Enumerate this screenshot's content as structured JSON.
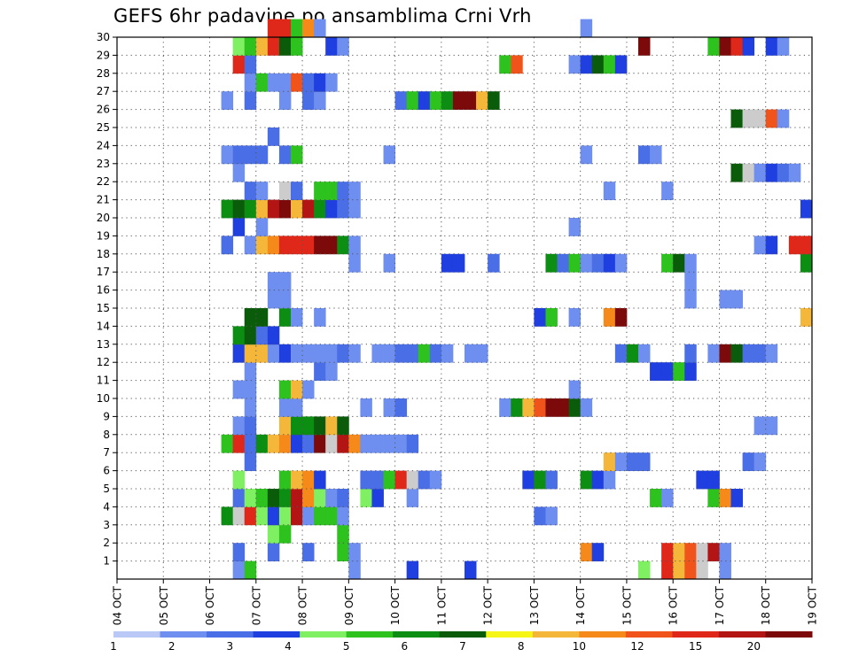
{
  "title": "GEFS 6hr padavine po ansamblima Crni Vrh",
  "chart_data": {
    "type": "heatmap",
    "title": "GEFS 6hr padavine po ansamblima Crni Vrh",
    "xlabel": "",
    "ylabel": "",
    "x_tick_labels": [
      "04 OCT",
      "05 OCT",
      "06 OCT",
      "07 OCT",
      "08 OCT",
      "09 OCT",
      "10 OCT",
      "11 OCT",
      "12 OCT",
      "13 OCT",
      "14 OCT",
      "15 OCT",
      "16 OCT",
      "17 OCT",
      "18 OCT",
      "19 OCT"
    ],
    "y_tick_labels": [
      "1",
      "2",
      "3",
      "4",
      "5",
      "6",
      "7",
      "8",
      "9",
      "10",
      "11",
      "12",
      "13",
      "14",
      "15",
      "16",
      "17",
      "18",
      "19",
      "20",
      "21",
      "22",
      "23",
      "24",
      "25",
      "26",
      "27",
      "28",
      "29",
      "30"
    ],
    "x_range": [
      0,
      60
    ],
    "y_range": [
      0,
      30
    ],
    "grid": true,
    "colorbar": {
      "labels": [
        "1",
        "2",
        "3",
        "4",
        "5",
        "6",
        "7",
        "8",
        "10",
        "12",
        "15",
        "20"
      ],
      "colors": [
        "#b9c8f5",
        "#6e8ff0",
        "#4a6ee6",
        "#1f3fe0",
        "#7ef061",
        "#2dc21e",
        "#0c8e13",
        "#0a5c0a",
        "#f5f516",
        "#f5b73a",
        "#f58a1a",
        "#f0541a",
        "#e0281a",
        "#b31414",
        "#7d0a0a"
      ]
    },
    "cells": [
      [
        10,
        0,
        1
      ],
      [
        11,
        0,
        5
      ],
      [
        20,
        0,
        1
      ],
      [
        25,
        0,
        3
      ],
      [
        30,
        0,
        3
      ],
      [
        45,
        0,
        4
      ],
      [
        47,
        0,
        12
      ],
      [
        48,
        0,
        9
      ],
      [
        49,
        0,
        11
      ],
      [
        50,
        0,
        15
      ],
      [
        52,
        0,
        1
      ],
      [
        10,
        1,
        2
      ],
      [
        13,
        1,
        2
      ],
      [
        16,
        1,
        2
      ],
      [
        19,
        1,
        5
      ],
      [
        20,
        1,
        1
      ],
      [
        40,
        1,
        10
      ],
      [
        41,
        1,
        3
      ],
      [
        47,
        1,
        12
      ],
      [
        48,
        1,
        9
      ],
      [
        49,
        1,
        11
      ],
      [
        50,
        1,
        15
      ],
      [
        51,
        1,
        13
      ],
      [
        52,
        1,
        1
      ],
      [
        13,
        2,
        4
      ],
      [
        14,
        2,
        5
      ],
      [
        19,
        2,
        5
      ],
      [
        9,
        3,
        6
      ],
      [
        10,
        3,
        20
      ],
      [
        11,
        3,
        12
      ],
      [
        12,
        3,
        4
      ],
      [
        13,
        3,
        3
      ],
      [
        14,
        3,
        4
      ],
      [
        15,
        3,
        13
      ],
      [
        16,
        3,
        1
      ],
      [
        17,
        3,
        5
      ],
      [
        18,
        3,
        5
      ],
      [
        19,
        3,
        1
      ],
      [
        36,
        3,
        2
      ],
      [
        37,
        3,
        1
      ],
      [
        10,
        4,
        2
      ],
      [
        11,
        4,
        4
      ],
      [
        12,
        4,
        5
      ],
      [
        13,
        4,
        7
      ],
      [
        14,
        4,
        6
      ],
      [
        15,
        4,
        13
      ],
      [
        16,
        4,
        10
      ],
      [
        17,
        4,
        4
      ],
      [
        18,
        4,
        1
      ],
      [
        19,
        4,
        2
      ],
      [
        21,
        4,
        4
      ],
      [
        22,
        4,
        3
      ],
      [
        25,
        4,
        1
      ],
      [
        46,
        4,
        5
      ],
      [
        47,
        4,
        1
      ],
      [
        51,
        4,
        5
      ],
      [
        52,
        4,
        10
      ],
      [
        53,
        4,
        3
      ],
      [
        10,
        5,
        4
      ],
      [
        14,
        5,
        5
      ],
      [
        15,
        5,
        9
      ],
      [
        16,
        5,
        10
      ],
      [
        17,
        5,
        3
      ],
      [
        21,
        5,
        2
      ],
      [
        22,
        5,
        2
      ],
      [
        23,
        5,
        5
      ],
      [
        24,
        5,
        12
      ],
      [
        25,
        5,
        15
      ],
      [
        26,
        5,
        2
      ],
      [
        27,
        5,
        1
      ],
      [
        35,
        5,
        3
      ],
      [
        36,
        5,
        6
      ],
      [
        37,
        5,
        2
      ],
      [
        40,
        5,
        6
      ],
      [
        41,
        5,
        3
      ],
      [
        42,
        5,
        1
      ],
      [
        50,
        5,
        3
      ],
      [
        51,
        5,
        3
      ],
      [
        11,
        6,
        2
      ],
      [
        42,
        6,
        9
      ],
      [
        43,
        6,
        1
      ],
      [
        44,
        6,
        2
      ],
      [
        45,
        6,
        2
      ],
      [
        54,
        6,
        2
      ],
      [
        55,
        6,
        1
      ],
      [
        9,
        7,
        5
      ],
      [
        10,
        7,
        12
      ],
      [
        11,
        7,
        2
      ],
      [
        12,
        7,
        6
      ],
      [
        13,
        7,
        9
      ],
      [
        14,
        7,
        10
      ],
      [
        15,
        7,
        3
      ],
      [
        16,
        7,
        2
      ],
      [
        17,
        7,
        14
      ],
      [
        18,
        7,
        15
      ],
      [
        19,
        7,
        13
      ],
      [
        20,
        7,
        10
      ],
      [
        21,
        7,
        1
      ],
      [
        22,
        7,
        1
      ],
      [
        23,
        7,
        1
      ],
      [
        24,
        7,
        1
      ],
      [
        25,
        7,
        2
      ],
      [
        10,
        8,
        1
      ],
      [
        11,
        8,
        2
      ],
      [
        14,
        8,
        9
      ],
      [
        15,
        8,
        6
      ],
      [
        16,
        8,
        6
      ],
      [
        17,
        8,
        7
      ],
      [
        18,
        8,
        9
      ],
      [
        19,
        8,
        7
      ],
      [
        55,
        8,
        1
      ],
      [
        56,
        8,
        1
      ],
      [
        11,
        9,
        1
      ],
      [
        14,
        9,
        1
      ],
      [
        15,
        9,
        1
      ],
      [
        21,
        9,
        1
      ],
      [
        23,
        9,
        1
      ],
      [
        24,
        9,
        2
      ],
      [
        33,
        9,
        1
      ],
      [
        34,
        9,
        6
      ],
      [
        35,
        9,
        9
      ],
      [
        36,
        9,
        11
      ],
      [
        37,
        9,
        14
      ],
      [
        38,
        9,
        14
      ],
      [
        39,
        9,
        7
      ],
      [
        40,
        9,
        1
      ],
      [
        10,
        10,
        1
      ],
      [
        11,
        10,
        1
      ],
      [
        14,
        10,
        5
      ],
      [
        15,
        10,
        9
      ],
      [
        16,
        10,
        1
      ],
      [
        39,
        10,
        1
      ],
      [
        11,
        11,
        1
      ],
      [
        17,
        11,
        2
      ],
      [
        18,
        11,
        1
      ],
      [
        46,
        11,
        3
      ],
      [
        47,
        11,
        3
      ],
      [
        48,
        11,
        5
      ],
      [
        49,
        11,
        3
      ],
      [
        10,
        12,
        3
      ],
      [
        11,
        12,
        9
      ],
      [
        12,
        12,
        9
      ],
      [
        13,
        12,
        1
      ],
      [
        14,
        12,
        3
      ],
      [
        15,
        12,
        1
      ],
      [
        16,
        12,
        1
      ],
      [
        17,
        12,
        1
      ],
      [
        18,
        12,
        1
      ],
      [
        19,
        12,
        2
      ],
      [
        20,
        12,
        1
      ],
      [
        22,
        12,
        1
      ],
      [
        23,
        12,
        1
      ],
      [
        24,
        12,
        2
      ],
      [
        25,
        12,
        2
      ],
      [
        26,
        12,
        5
      ],
      [
        27,
        12,
        2
      ],
      [
        28,
        12,
        1
      ],
      [
        30,
        12,
        1
      ],
      [
        31,
        12,
        1
      ],
      [
        43,
        12,
        2
      ],
      [
        44,
        12,
        6
      ],
      [
        45,
        12,
        1
      ],
      [
        49,
        12,
        2
      ],
      [
        51,
        12,
        1
      ],
      [
        52,
        12,
        14
      ],
      [
        53,
        12,
        7
      ],
      [
        54,
        12,
        2
      ],
      [
        55,
        12,
        2
      ],
      [
        56,
        12,
        1
      ],
      [
        10,
        13,
        6
      ],
      [
        11,
        13,
        7
      ],
      [
        12,
        13,
        2
      ],
      [
        13,
        13,
        3
      ],
      [
        11,
        14,
        7
      ],
      [
        12,
        14,
        7
      ],
      [
        14,
        14,
        6
      ],
      [
        15,
        14,
        1
      ],
      [
        17,
        14,
        1
      ],
      [
        36,
        14,
        3
      ],
      [
        37,
        14,
        5
      ],
      [
        39,
        14,
        1
      ],
      [
        42,
        14,
        10
      ],
      [
        43,
        14,
        14
      ],
      [
        59,
        14,
        9
      ],
      [
        13,
        15,
        1
      ],
      [
        14,
        15,
        1
      ],
      [
        49,
        15,
        1
      ],
      [
        52,
        15,
        1
      ],
      [
        53,
        15,
        1
      ],
      [
        13,
        16,
        1
      ],
      [
        14,
        16,
        1
      ],
      [
        49,
        16,
        1
      ],
      [
        20,
        17,
        1
      ],
      [
        23,
        17,
        1
      ],
      [
        28,
        17,
        3
      ],
      [
        29,
        17,
        3
      ],
      [
        32,
        17,
        2
      ],
      [
        37,
        17,
        6
      ],
      [
        38,
        17,
        2
      ],
      [
        39,
        17,
        5
      ],
      [
        40,
        17,
        1
      ],
      [
        41,
        17,
        2
      ],
      [
        42,
        17,
        3
      ],
      [
        43,
        17,
        1
      ],
      [
        47,
        17,
        5
      ],
      [
        48,
        17,
        7
      ],
      [
        49,
        17,
        1
      ],
      [
        59,
        17,
        6
      ],
      [
        9,
        18,
        2
      ],
      [
        11,
        18,
        1
      ],
      [
        12,
        18,
        9
      ],
      [
        13,
        18,
        10
      ],
      [
        14,
        18,
        12
      ],
      [
        15,
        18,
        12
      ],
      [
        16,
        18,
        12
      ],
      [
        17,
        18,
        14
      ],
      [
        18,
        18,
        14
      ],
      [
        19,
        18,
        6
      ],
      [
        20,
        18,
        1
      ],
      [
        55,
        18,
        1
      ],
      [
        56,
        18,
        3
      ],
      [
        58,
        18,
        12
      ],
      [
        59,
        18,
        12
      ],
      [
        10,
        19,
        3
      ],
      [
        12,
        19,
        1
      ],
      [
        39,
        19,
        1
      ],
      [
        9,
        20,
        6
      ],
      [
        10,
        20,
        7
      ],
      [
        11,
        20,
        6
      ],
      [
        12,
        20,
        9
      ],
      [
        13,
        20,
        13
      ],
      [
        14,
        20,
        14
      ],
      [
        15,
        20,
        9
      ],
      [
        16,
        20,
        13
      ],
      [
        17,
        20,
        6
      ],
      [
        18,
        20,
        3
      ],
      [
        19,
        20,
        2
      ],
      [
        20,
        20,
        1
      ],
      [
        59,
        20,
        3
      ],
      [
        11,
        21,
        2
      ],
      [
        12,
        21,
        1
      ],
      [
        14,
        21,
        15
      ],
      [
        15,
        21,
        2
      ],
      [
        17,
        21,
        5
      ],
      [
        18,
        21,
        5
      ],
      [
        19,
        21,
        2
      ],
      [
        20,
        21,
        1
      ],
      [
        42,
        21,
        1
      ],
      [
        47,
        21,
        1
      ],
      [
        10,
        22,
        1
      ],
      [
        53,
        22,
        7
      ],
      [
        54,
        22,
        15
      ],
      [
        55,
        22,
        1
      ],
      [
        56,
        22,
        3
      ],
      [
        57,
        22,
        2
      ],
      [
        58,
        22,
        1
      ],
      [
        9,
        23,
        1
      ],
      [
        10,
        23,
        2
      ],
      [
        11,
        23,
        2
      ],
      [
        12,
        23,
        2
      ],
      [
        14,
        23,
        2
      ],
      [
        15,
        23,
        5
      ],
      [
        23,
        23,
        1
      ],
      [
        40,
        23,
        1
      ],
      [
        45,
        23,
        2
      ],
      [
        46,
        23,
        1
      ],
      [
        13,
        24,
        2
      ],
      [
        53,
        25,
        7
      ],
      [
        54,
        25,
        17
      ],
      [
        55,
        25,
        17
      ],
      [
        56,
        25,
        11
      ],
      [
        57,
        25,
        1
      ],
      [
        9,
        26,
        1
      ],
      [
        11,
        26,
        2
      ],
      [
        14,
        26,
        1
      ],
      [
        16,
        26,
        2
      ],
      [
        17,
        26,
        1
      ],
      [
        24,
        26,
        2
      ],
      [
        25,
        26,
        5
      ],
      [
        26,
        26,
        3
      ],
      [
        27,
        26,
        5
      ],
      [
        28,
        26,
        6
      ],
      [
        29,
        26,
        14
      ],
      [
        30,
        26,
        14
      ],
      [
        31,
        26,
        9
      ],
      [
        32,
        26,
        7
      ],
      [
        11,
        27,
        1
      ],
      [
        12,
        27,
        5
      ],
      [
        13,
        27,
        1
      ],
      [
        14,
        27,
        1
      ],
      [
        15,
        27,
        11
      ],
      [
        16,
        27,
        2
      ],
      [
        17,
        27,
        3
      ],
      [
        18,
        27,
        1
      ],
      [
        10,
        28,
        12
      ],
      [
        11,
        28,
        2
      ],
      [
        33,
        28,
        5
      ],
      [
        34,
        28,
        11
      ],
      [
        39,
        28,
        1
      ],
      [
        40,
        28,
        3
      ],
      [
        41,
        28,
        7
      ],
      [
        42,
        28,
        5
      ],
      [
        43,
        28,
        3
      ],
      [
        10,
        29,
        4
      ],
      [
        11,
        29,
        5
      ],
      [
        12,
        29,
        9
      ],
      [
        13,
        29,
        12
      ],
      [
        14,
        29,
        7
      ],
      [
        15,
        29,
        5
      ],
      [
        18,
        29,
        3
      ],
      [
        19,
        29,
        1
      ],
      [
        45,
        29,
        14
      ],
      [
        51,
        29,
        5
      ],
      [
        52,
        29,
        14
      ],
      [
        53,
        29,
        12
      ],
      [
        54,
        29,
        3
      ],
      [
        56,
        29,
        3
      ],
      [
        57,
        29,
        1
      ],
      [
        13,
        30,
        12
      ],
      [
        14,
        30,
        12
      ],
      [
        15,
        30,
        5
      ],
      [
        16,
        30,
        10
      ],
      [
        17,
        30,
        1
      ],
      [
        40,
        30,
        1
      ]
    ]
  }
}
